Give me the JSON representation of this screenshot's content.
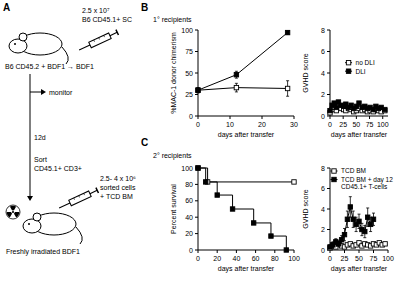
{
  "panel_letters": [
    "A",
    "B",
    "C"
  ],
  "row_titles": [
    "1° recipients",
    "2° recipients"
  ],
  "diagram": {
    "dose_1": "2.5 x 10⁷",
    "cells_1": "B6 CD45.1+ SC",
    "mouse_1": "B6 CD45.2 + BDF1 → BDF1",
    "monitor": "monitor",
    "time": "12d",
    "sort": "Sort",
    "sort_cells": "CD45.1+ CD3+",
    "dose_2": "2.5- 4 x 10⁶",
    "cells_2": "sorted cells",
    "cells_3": "+ TCD BM",
    "mouse_2": "Freshly irradiated BDF1"
  },
  "chart_data": [
    {
      "type": "line",
      "x_label": "days after transfer",
      "y_label": "%MAC-1 donor chimerism",
      "xlim": [
        0,
        30
      ],
      "xticks": [
        0,
        10,
        20,
        30
      ],
      "ylim": [
        0,
        100
      ],
      "yticks": [
        0,
        25,
        50,
        75,
        100
      ],
      "series": [
        {
          "color": "#000000",
          "marker": "square-open",
          "x": [
            0,
            12,
            28
          ],
          "values": [
            30,
            33,
            32
          ],
          "errors": [
            3,
            5,
            9
          ]
        },
        {
          "color": "#000000",
          "marker": "square",
          "x": [
            0,
            12,
            28
          ],
          "values": [
            30,
            48,
            97
          ],
          "errors": [
            3,
            4,
            2
          ]
        }
      ]
    },
    {
      "type": "line",
      "x_label": "days after transfer",
      "y_label": "GVHD score",
      "xlim": [
        0,
        110
      ],
      "xticks": [
        0,
        25,
        50,
        75,
        100
      ],
      "ylim": [
        0,
        8
      ],
      "yticks": [
        0,
        2,
        4,
        6,
        8
      ],
      "legend": "right",
      "series": [
        {
          "name": "no DLI",
          "color": "#000000",
          "marker": "square-open",
          "x": [
            0,
            4,
            8,
            12,
            16,
            21,
            26,
            30,
            35,
            40,
            45,
            50,
            55,
            61,
            66,
            71,
            76,
            82,
            87,
            92,
            97,
            104
          ],
          "values": [
            0.3,
            0.6,
            0.8,
            0.5,
            0.9,
            0.7,
            0.6,
            0.5,
            0.7,
            0.6,
            0.4,
            0.5,
            0.7,
            0.5,
            0.6,
            0.4,
            0.5,
            0.4,
            0.6,
            0.5,
            0.4,
            0.5
          ]
        },
        {
          "name": "DLI",
          "color": "#000000",
          "marker": "square",
          "x": [
            0,
            4,
            8,
            12,
            16,
            21,
            26,
            30,
            35,
            40,
            45,
            50,
            55,
            61,
            66,
            71,
            76,
            82,
            87,
            92,
            97,
            104
          ],
          "values": [
            0.5,
            1.0,
            1.2,
            0.8,
            1.3,
            1.0,
            0.9,
            1.1,
            0.8,
            1.0,
            0.7,
            0.9,
            1.2,
            0.8,
            0.9,
            0.7,
            0.8,
            0.6,
            0.9,
            0.7,
            0.8,
            0.6
          ]
        }
      ]
    },
    {
      "type": "line",
      "x_label": "days after transfer",
      "y_label": "Percent survival",
      "xlim": [
        0,
        100
      ],
      "xticks": [
        0,
        20,
        40,
        60,
        80,
        100
      ],
      "ylim": [
        0,
        100
      ],
      "yticks": [
        0,
        20,
        40,
        60,
        80,
        100
      ],
      "series": [
        {
          "color": "#000000",
          "marker": "square-open",
          "line_style": "step",
          "x": [
            0,
            10,
            100
          ],
          "values": [
            100,
            83,
            83
          ]
        },
        {
          "color": "#000000",
          "marker": "square",
          "line_style": "step",
          "x": [
            0,
            8,
            20,
            36,
            58,
            76,
            92
          ],
          "values": [
            100,
            83,
            67,
            50,
            33,
            17,
            0
          ]
        }
      ]
    },
    {
      "type": "line",
      "x_label": "days after transfer",
      "y_label": "GVHD score",
      "xlim": [
        0,
        100
      ],
      "xticks": [
        0,
        25,
        50,
        75,
        100
      ],
      "ylim": [
        0,
        8
      ],
      "yticks": [
        0,
        2,
        4,
        6,
        8
      ],
      "legend": "top",
      "series": [
        {
          "name": "TCD BM",
          "color": "#000000",
          "marker": "square-open",
          "x": [
            0,
            5,
            10,
            15,
            20,
            25,
            30,
            35,
            40,
            45,
            50,
            55,
            60,
            65,
            70,
            75,
            80,
            85,
            90,
            95
          ],
          "values": [
            0.2,
            0.5,
            0.3,
            0.6,
            0.4,
            0.3,
            0.5,
            0.6,
            0.4,
            0.5,
            0.7,
            0.4,
            0.6,
            0.5,
            0.4,
            0.6,
            0.5,
            0.7,
            0.5,
            0.6
          ]
        },
        {
          "name": "TCD BM + day 12 CD45.1+ T-cells",
          "color": "#000000",
          "marker": "square",
          "x": [
            0,
            5,
            10,
            15,
            20,
            25,
            30,
            35,
            40,
            45,
            50,
            55,
            60,
            65,
            70,
            75
          ],
          "values": [
            0.3,
            0.5,
            0.8,
            0.6,
            1.0,
            1.5,
            3.0,
            4.2,
            3.0,
            2.5,
            2.8,
            2.0,
            1.8,
            3.2,
            2.5,
            3.0
          ],
          "errors": [
            0.2,
            0.3,
            0.3,
            0.3,
            0.4,
            0.6,
            0.8,
            1.0,
            0.8,
            0.7,
            0.7,
            0.6,
            0.6,
            0.9,
            0.7,
            0.6
          ]
        }
      ]
    }
  ]
}
